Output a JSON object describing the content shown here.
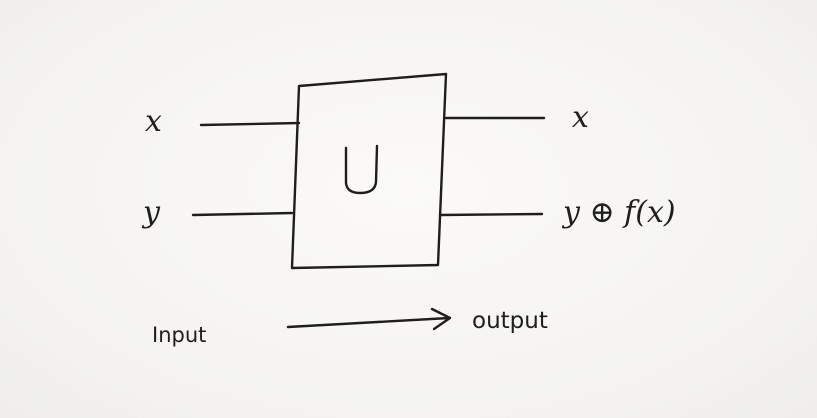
{
  "diagram": {
    "gate_label": "U",
    "inputs": [
      {
        "label": "x"
      },
      {
        "label": "y"
      }
    ],
    "outputs": [
      {
        "label": "x"
      },
      {
        "label": "y ⊕ f(x)"
      }
    ],
    "flow": {
      "from_label": "Input",
      "to_label": "output"
    }
  }
}
